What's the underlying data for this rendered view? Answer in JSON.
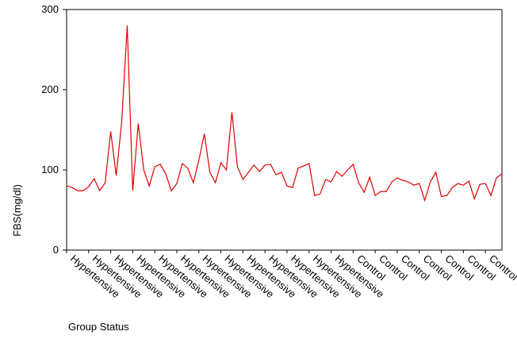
{
  "chart_data": {
    "type": "line",
    "xlabel": "Group Status",
    "ylabel": "FBS(mg/dl)",
    "categories": [
      "Hypertensive",
      null,
      null,
      null,
      "Hypertensive",
      null,
      null,
      null,
      "Hypertensive",
      null,
      null,
      null,
      "Hypertensive",
      null,
      null,
      null,
      "Hypertensive",
      null,
      null,
      null,
      "Hypertensive",
      null,
      null,
      null,
      "Hypertensive",
      null,
      null,
      null,
      "Hypertensive",
      null,
      null,
      null,
      "Hypertensive",
      null,
      null,
      null,
      "Hypertensive",
      null,
      null,
      null,
      "Hypertensive",
      null,
      null,
      null,
      "Hypertensive",
      null,
      null,
      null,
      "Hypertensive",
      null,
      null,
      null,
      "Control",
      null,
      null,
      null,
      "Control",
      null,
      null,
      null,
      "Control",
      null,
      null,
      null,
      "Control",
      null,
      null,
      null,
      "Control",
      null,
      null,
      null,
      "Control",
      null,
      null,
      null,
      "Control",
      null,
      null,
      null
    ],
    "values": [
      80,
      78,
      74,
      74,
      79,
      89,
      74,
      84,
      148,
      93,
      160,
      280,
      74,
      158,
      100,
      80,
      104,
      107,
      95,
      74,
      83,
      108,
      102,
      84,
      112,
      145,
      97,
      84,
      109,
      100,
      172,
      104,
      88,
      97,
      106,
      98,
      106,
      107,
      94,
      97,
      80,
      78,
      102,
      105,
      108,
      68,
      70,
      88,
      85,
      98,
      92,
      100,
      107,
      84,
      72,
      91,
      68,
      73,
      73,
      85,
      90,
      87,
      85,
      81,
      83,
      62,
      85,
      97,
      67,
      68,
      78,
      83,
      81,
      86,
      64,
      82,
      83,
      68,
      90,
      95
    ],
    "color": "#e00000",
    "ylim": [
      0,
      300
    ],
    "yticks": [
      0,
      100,
      200,
      300
    ]
  }
}
